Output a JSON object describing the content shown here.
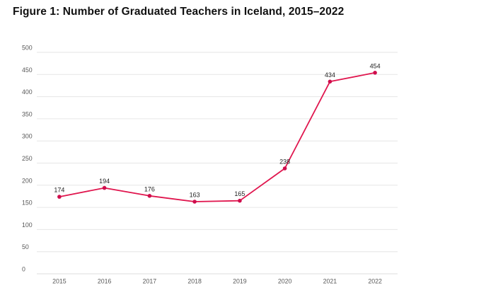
{
  "figure": {
    "title": "Figure 1: Number of Graduated Teachers in Iceland, 2015–2022"
  },
  "chart_data": {
    "type": "line",
    "title": "Figure 1: Number of Graduated Teachers in Iceland, 2015–2022",
    "categories": [
      "2015",
      "2016",
      "2017",
      "2018",
      "2019",
      "2020",
      "2021",
      "2022"
    ],
    "series": [
      {
        "name": "Graduated Teachers",
        "values": [
          174,
          194,
          176,
          163,
          165,
          238,
          434,
          454
        ]
      }
    ],
    "data_labels": [
      "174",
      "194",
      "176",
      "163",
      "165",
      "238",
      "434",
      "454"
    ],
    "xlabel": "",
    "ylabel": "",
    "ylim": [
      0,
      500
    ],
    "ytick_step": 50,
    "yticks": [
      0,
      50,
      100,
      150,
      200,
      250,
      300,
      350,
      400,
      450,
      500
    ],
    "grid": "horizontal",
    "legend": "none",
    "colors": {
      "line": "#e0164e",
      "marker": "#cf0d4c",
      "grid": "#e6e6e6",
      "zero_line": "#dcdcdc",
      "axis_text": "#595959",
      "data_label": "#1f1f1f",
      "background": "#ffffff",
      "title_text": "#111111"
    }
  }
}
